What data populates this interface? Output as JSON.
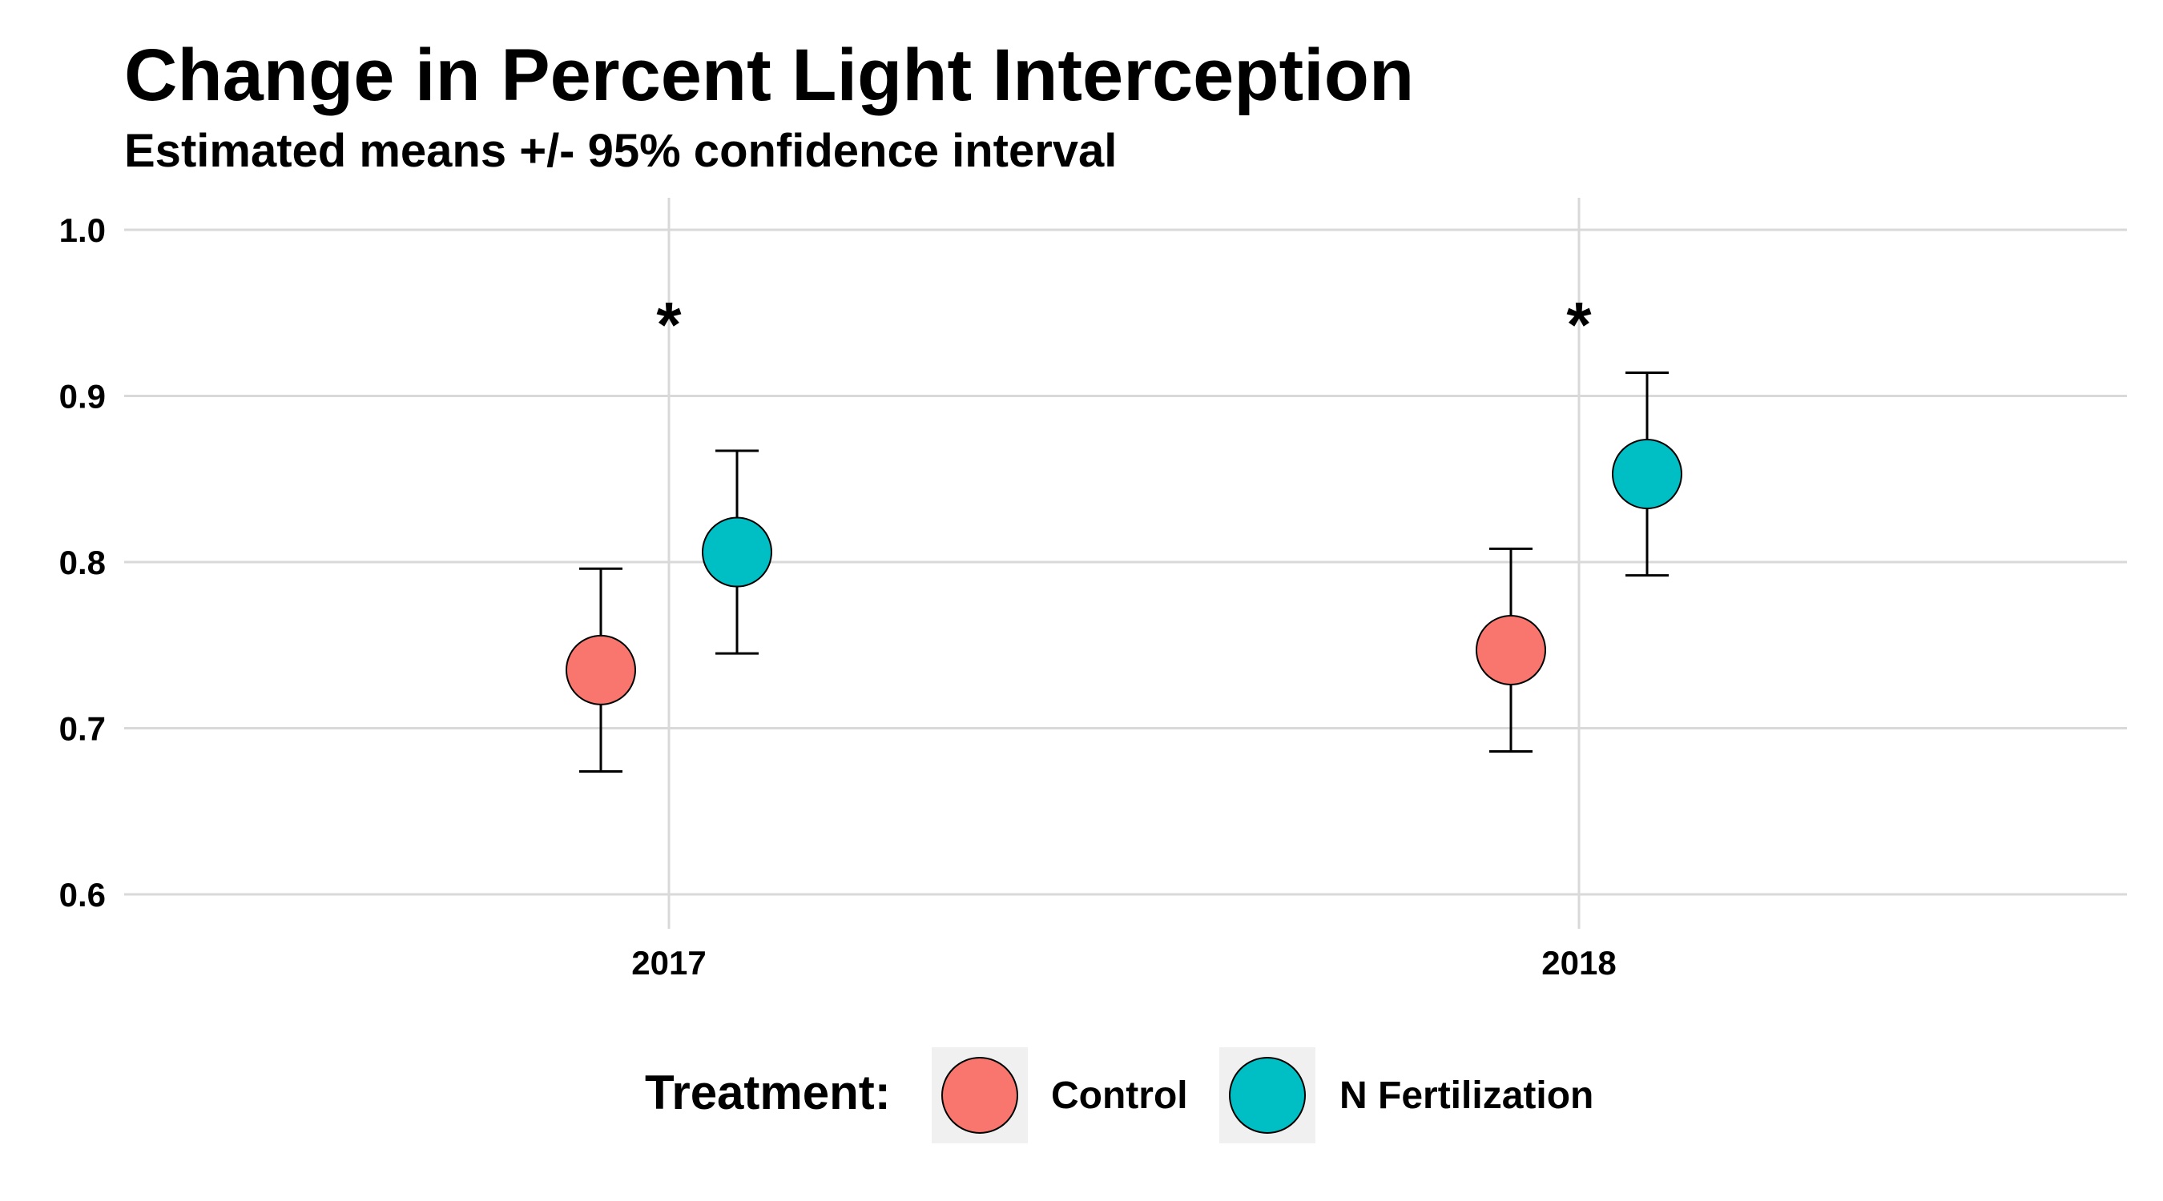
{
  "chart_data": {
    "type": "scatter",
    "title": "Change in Percent Light Interception",
    "subtitle": "Estimated means +/- 95% confidence interval",
    "xlabel": "",
    "ylabel": "",
    "categories": [
      "2017",
      "2018"
    ],
    "ylim": [
      0.6,
      1.0
    ],
    "y_ticks": [
      "0.6",
      "0.7",
      "0.8",
      "0.9",
      "1.0"
    ],
    "grid": true,
    "legend": {
      "title": "Treatment:",
      "position": "bottom",
      "entries": [
        "Control",
        "N Fertilization"
      ]
    },
    "series": [
      {
        "name": "Control",
        "color": "#F8766D",
        "values": [
          0.735,
          0.747
        ],
        "ci_low": [
          0.674,
          0.686
        ],
        "ci_high": [
          0.796,
          0.808
        ]
      },
      {
        "name": "N Fertilization",
        "color": "#00BFC4",
        "values": [
          0.806,
          0.853
        ],
        "ci_low": [
          0.745,
          0.792
        ],
        "ci_high": [
          0.867,
          0.914
        ]
      }
    ],
    "annotations": [
      {
        "category": "2017",
        "text": "*",
        "y": 0.95
      },
      {
        "category": "2018",
        "text": "*",
        "y": 0.95
      }
    ]
  }
}
